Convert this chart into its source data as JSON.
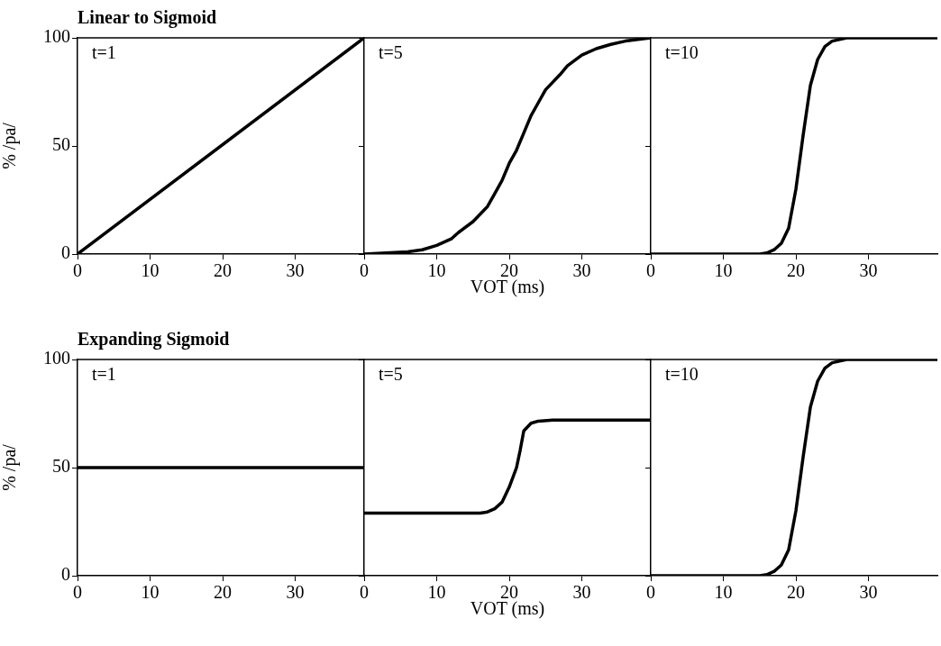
{
  "chart_data": [
    {
      "type": "line",
      "title": "Linear to Sigmoid",
      "ylabel": "% /pa/",
      "annotations": [
        "t=1"
      ],
      "x": [
        0,
        39.5
      ],
      "values": [
        0,
        100
      ],
      "color": "#000000",
      "marker": "none",
      "line_style": "solid",
      "xlim": [
        0,
        39.5
      ],
      "ylim": [
        0,
        100
      ],
      "xticks": [
        0,
        10,
        20,
        30
      ],
      "yticks": [
        0,
        50,
        100
      ]
    },
    {
      "type": "line",
      "xlabel": "VOT (ms)",
      "annotations": [
        "t=5"
      ],
      "x": [
        0,
        3,
        6,
        8,
        10,
        12,
        13,
        15,
        17,
        18,
        19,
        20,
        21,
        22,
        23,
        24,
        25,
        27,
        28,
        30,
        32,
        34,
        36,
        37,
        39.5
      ],
      "values": [
        0,
        0.5,
        1,
        2,
        4,
        7,
        10,
        15,
        22,
        28,
        34,
        42,
        48,
        56,
        64,
        70,
        76,
        83,
        87,
        92,
        95,
        97,
        98.5,
        99,
        100
      ],
      "color": "#000000",
      "marker": "none",
      "line_style": "solid",
      "xlim": [
        0,
        39.5
      ],
      "ylim": [
        0,
        100
      ],
      "xticks": [
        0,
        10,
        20,
        30
      ],
      "yticks": [
        0,
        50,
        100
      ],
      "tick_labels": "x"
    },
    {
      "type": "line",
      "annotations": [
        "t=10"
      ],
      "x": [
        0,
        15,
        16,
        17,
        18,
        19,
        20,
        21,
        22,
        23,
        24,
        25,
        27,
        39.5
      ],
      "values": [
        0,
        0,
        0.5,
        2,
        5,
        12,
        30,
        55,
        78,
        90,
        96,
        98.5,
        100,
        100
      ],
      "color": "#000000",
      "marker": "none",
      "line_style": "solid",
      "xlim": [
        0,
        39.5
      ],
      "ylim": [
        0,
        100
      ],
      "xticks": [
        0,
        10,
        20,
        30
      ],
      "yticks": [
        0,
        50,
        100
      ],
      "tick_labels": "x"
    },
    {
      "type": "line",
      "title": "Expanding Sigmoid",
      "ylabel": "% /pa/",
      "annotations": [
        "t=1"
      ],
      "x": [
        0,
        39.5
      ],
      "values": [
        50,
        50
      ],
      "color": "#000000",
      "marker": "none",
      "line_style": "solid",
      "xlim": [
        0,
        39.5
      ],
      "ylim": [
        0,
        100
      ],
      "xticks": [
        0,
        10,
        20,
        30
      ],
      "yticks": [
        0,
        50,
        100
      ]
    },
    {
      "type": "line",
      "xlabel": "VOT (ms)",
      "annotations": [
        "t=5"
      ],
      "x": [
        0,
        16,
        17,
        18,
        19,
        20,
        21,
        21.5,
        22,
        23,
        24,
        26,
        39.5
      ],
      "values": [
        29,
        29,
        29.5,
        31,
        34,
        41,
        50,
        58,
        67,
        70.5,
        71.5,
        72,
        72
      ],
      "color": "#000000",
      "marker": "none",
      "line_style": "solid",
      "xlim": [
        0,
        39.5
      ],
      "ylim": [
        0,
        100
      ],
      "xticks": [
        0,
        10,
        20,
        30
      ],
      "yticks": [
        0,
        50,
        100
      ],
      "tick_labels": "x"
    },
    {
      "type": "line",
      "annotations": [
        "t=10"
      ],
      "x": [
        0,
        15,
        16,
        17,
        18,
        19,
        20,
        21,
        22,
        23,
        24,
        25,
        27,
        39.5
      ],
      "values": [
        0,
        0,
        0.5,
        2,
        5,
        12,
        30,
        55,
        78,
        90,
        96,
        98.5,
        100,
        100
      ],
      "color": "#000000",
      "marker": "none",
      "line_style": "solid",
      "xlim": [
        0,
        39.5
      ],
      "ylim": [
        0,
        100
      ],
      "xticks": [
        0,
        10,
        20,
        30
      ],
      "yticks": [
        0,
        50,
        100
      ],
      "tick_labels": "x"
    }
  ]
}
